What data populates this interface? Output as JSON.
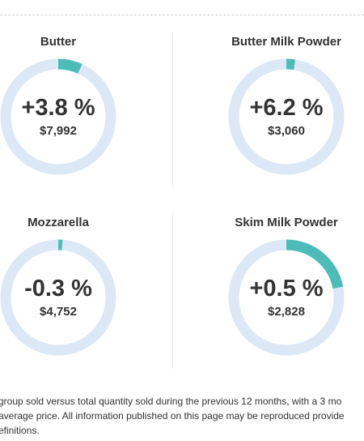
{
  "accent_color": "#4dbcb9",
  "track_color": "#dce8f6",
  "cards": [
    {
      "title": "Butter",
      "change_pct": "+3.8 %",
      "price": "$7,992",
      "share": 0.068
    },
    {
      "title": "Butter Milk Powder",
      "change_pct": "+6.2 %",
      "price": "$3,060",
      "share": 0.025
    },
    {
      "title": "Mozzarella",
      "change_pct": "-0.3 %",
      "price": "$4,752",
      "share": 0.012
    },
    {
      "title": "Skim Milk Powder",
      "change_pct": "+0.5 %",
      "price": "$2,828",
      "share": 0.22
    }
  ],
  "footnote": {
    "line1": "group sold versus total quantity sold during the previous 12 months, with a 3 mo",
    "line2": "average price. All information published on this page may be reproduced provide",
    "line3": "efinitions."
  }
}
